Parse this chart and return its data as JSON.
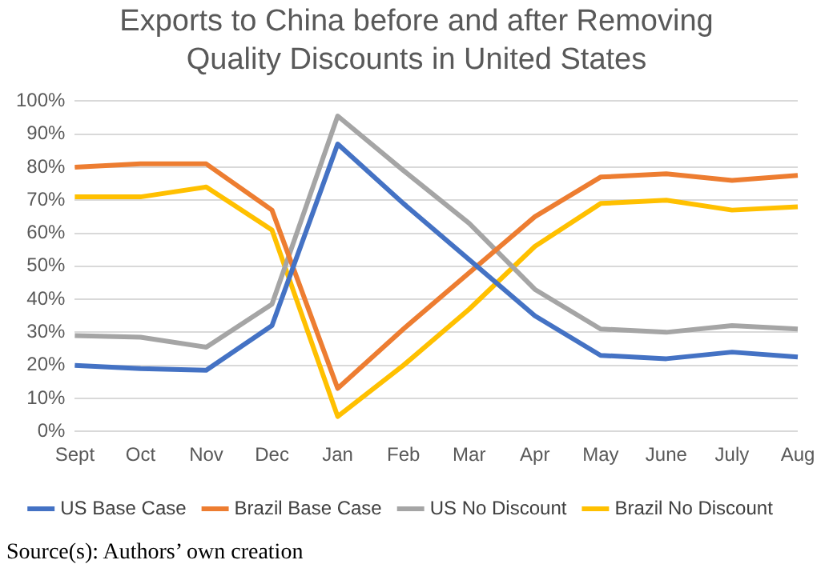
{
  "chart_data": {
    "type": "line",
    "title": "Exports to China before and after Removing Quality Discounts in United States",
    "categories": [
      "Sept",
      "Oct",
      "Nov",
      "Dec",
      "Jan",
      "Feb",
      "Mar",
      "Apr",
      "May",
      "June",
      "July",
      "Aug"
    ],
    "series": [
      {
        "name": "US Base Case",
        "color": "#4472c4",
        "values": [
          20,
          19,
          18.5,
          32,
          87,
          69,
          52,
          35,
          23,
          22,
          24,
          22.5
        ]
      },
      {
        "name": "Brazil Base Case",
        "color": "#ed7d31",
        "values": [
          80,
          81,
          81,
          67,
          13,
          31,
          48,
          65,
          77,
          78,
          76,
          77.5
        ]
      },
      {
        "name": "US No Discount",
        "color": "#a5a5a5",
        "values": [
          29,
          28.5,
          25.5,
          38.5,
          95.5,
          79,
          63,
          43,
          31,
          30,
          32,
          31
        ]
      },
      {
        "name": "Brazil No Discount",
        "color": "#ffc000",
        "values": [
          71,
          71,
          74,
          61,
          4.5,
          20,
          37,
          56,
          69,
          70,
          67,
          68
        ]
      }
    ],
    "ylim": [
      0,
      100
    ],
    "yticks": [
      {
        "value": 0,
        "label": "0%"
      },
      {
        "value": 10,
        "label": "10%"
      },
      {
        "value": 20,
        "label": "20%"
      },
      {
        "value": 30,
        "label": "30%"
      },
      {
        "value": 40,
        "label": "40%"
      },
      {
        "value": 50,
        "label": "50%"
      },
      {
        "value": 60,
        "label": "60%"
      },
      {
        "value": 70,
        "label": "70%"
      },
      {
        "value": 80,
        "label": "80%"
      },
      {
        "value": 90,
        "label": "90%"
      },
      {
        "value": 100,
        "label": "100%"
      }
    ],
    "grid": "y",
    "legend": "bottom",
    "marker": "none",
    "line_style": "solid",
    "annotations": [
      "Source(s): Authors’ own creation"
    ]
  }
}
